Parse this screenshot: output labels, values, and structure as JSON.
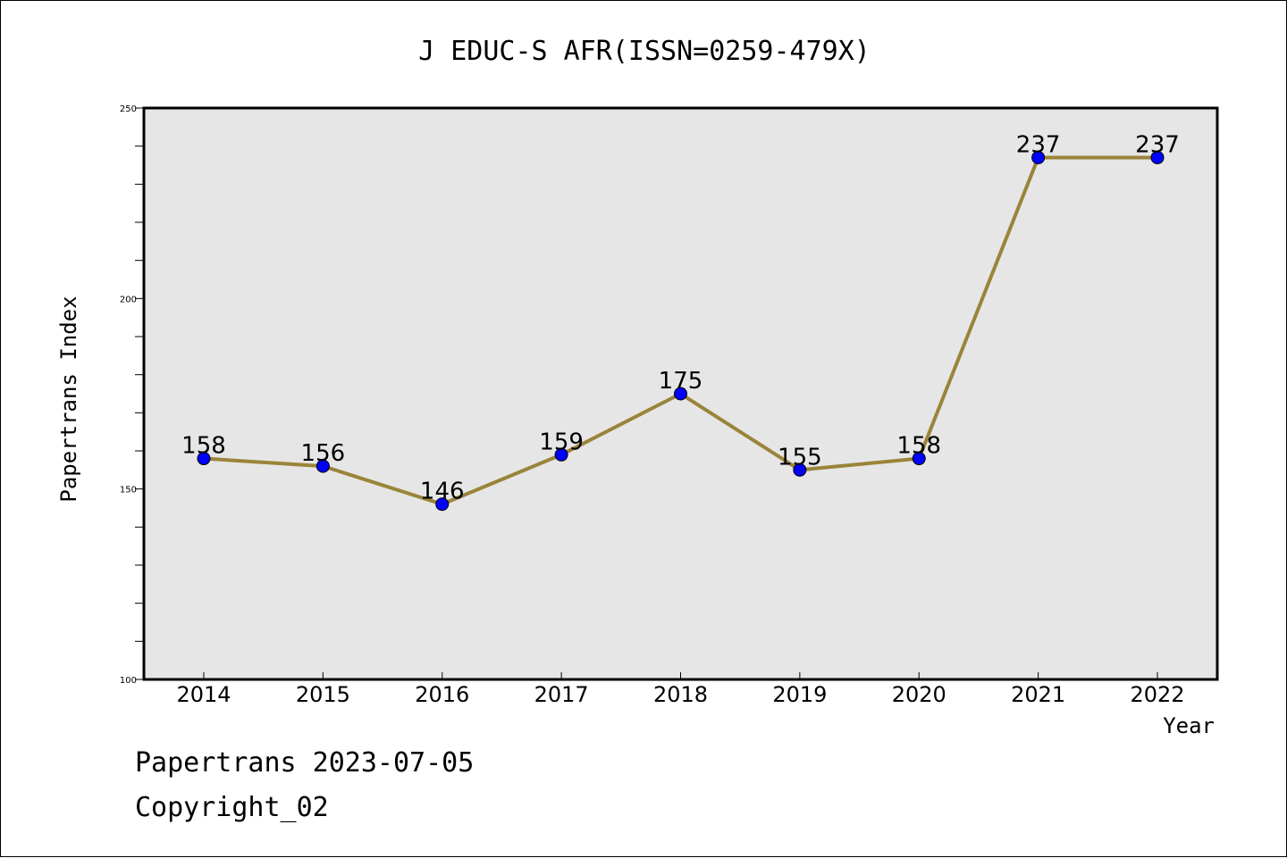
{
  "chart_data": {
    "type": "line",
    "title": "J EDUC-S AFR(ISSN=0259-479X)",
    "xlabel": "Year",
    "ylabel": "Papertrans Index",
    "x": [
      "2014",
      "2015",
      "2016",
      "2017",
      "2018",
      "2019",
      "2020",
      "2021",
      "2022"
    ],
    "series": [
      {
        "values": [
          158,
          156,
          146,
          159,
          175,
          155,
          158,
          237,
          237
        ]
      }
    ],
    "data_labels": [
      "158",
      "156",
      "146",
      "159",
      "175",
      "155",
      "158",
      "237",
      "237"
    ],
    "ylim": [
      100,
      250
    ],
    "y_ticks": [
      "100",
      "150",
      "200",
      "250"
    ],
    "grid": false,
    "colors": {
      "line": "#9a8439",
      "marker": "#0000ff",
      "plot_bg": "#e6e6e6"
    }
  },
  "footer": {
    "line1": "Papertrans 2023-07-05",
    "line2": "Copyright_02"
  }
}
